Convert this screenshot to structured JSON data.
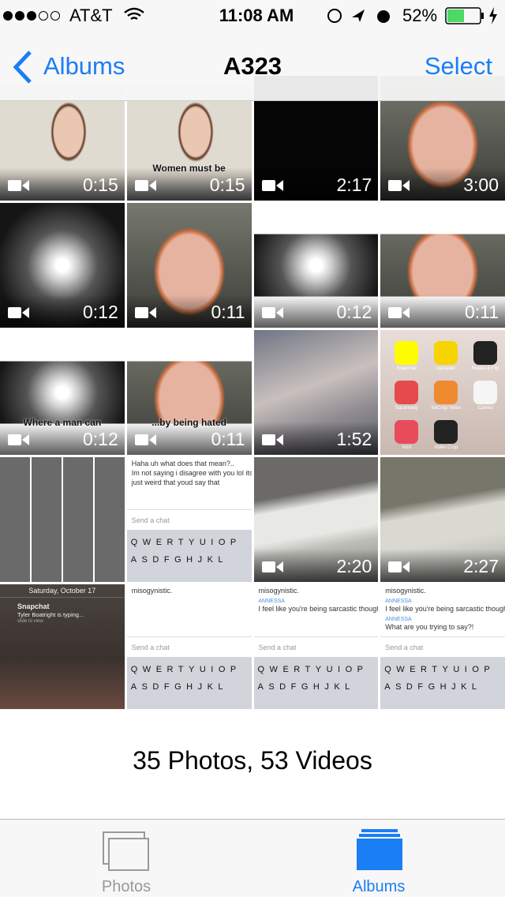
{
  "status_bar": {
    "carrier": "AT&T",
    "time": "11:08 AM",
    "battery": "52%"
  },
  "nav_bar": {
    "back": "Albums",
    "title": "A323",
    "action": "Select"
  },
  "grid": {
    "items": [
      {
        "duration": "0:15"
      },
      {
        "duration": "0:15",
        "caption": "Women must be"
      },
      {
        "duration": "2:17"
      },
      {
        "duration": "3:00"
      },
      {
        "duration": "0:12"
      },
      {
        "duration": "0:11"
      },
      {
        "duration": "0:12"
      },
      {
        "duration": "0:11"
      },
      {
        "duration": "0:12",
        "caption": "Where a man can"
      },
      {
        "duration": "0:11",
        "caption": "...by being hated"
      },
      {
        "duration": "1:52"
      },
      {
        "apps": [
          "Snapchat",
          "Uploader",
          "Rotate & Flip",
          "Squaready",
          "NoCrop Video",
          "Cameo",
          "Vont",
          "Video Crop"
        ]
      },
      {},
      {
        "chat": [
          "Haha uh what does that mean?..",
          "Im not saying i disagree with you lol its",
          "just weird that youd say that"
        ],
        "input": "Send a chat",
        "keys": [
          "QWERTYUIOP",
          "ASDFGHJKL"
        ]
      },
      {
        "duration": "2:20"
      },
      {
        "duration": "2:27"
      },
      {
        "lock": {
          "date": "Saturday, October 17",
          "app": "Snapchat",
          "message": "Tyler Boatright is typing...",
          "hint": "slide to view"
        }
      },
      {
        "chat": [
          "misogynistic."
        ],
        "input": "Send a chat",
        "keys": [
          "QWERTYUIOP",
          "ASDFGHJKL"
        ]
      },
      {
        "chat": [
          "misogynistic.",
          "ANNESSA",
          "I feel like you're being sarcastic though"
        ],
        "input": "Send a chat",
        "keys": [
          "QWERTYUIOP",
          "ASDFGHJKL"
        ]
      },
      {
        "chat": [
          "misogynistic.",
          "ANNESSA",
          "I feel like you're being sarcastic though",
          "ANNESSA",
          "What are you trying to say?!"
        ],
        "input": "Send a chat",
        "keys": [
          "QWERTYUIOP",
          "ASDFGHJKL"
        ]
      }
    ]
  },
  "summary": "35 Photos, 53 Videos",
  "tab_bar": {
    "tabs": [
      {
        "label": "Photos"
      },
      {
        "label": "Albums"
      }
    ]
  }
}
